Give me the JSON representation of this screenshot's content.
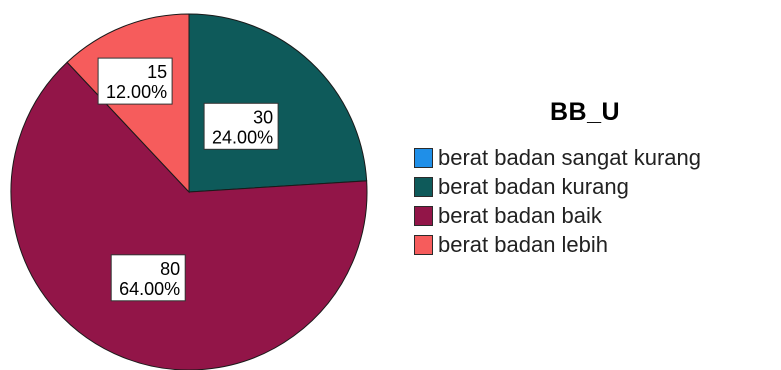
{
  "chart_data": {
    "type": "pie",
    "legend_title": "BB_U",
    "legend_position": "right",
    "slices": [
      {
        "label": "berat badan sangat kurang",
        "value": 0,
        "percent_label": "",
        "count_label": "",
        "color": "#1f8fe8"
      },
      {
        "label": "berat badan kurang",
        "value": 30,
        "percent_label": "24.00%",
        "count_label": "30",
        "color": "#0e5a5a"
      },
      {
        "label": "berat badan baik",
        "value": 80,
        "percent_label": "64.00%",
        "count_label": "80",
        "color": "#921548"
      },
      {
        "label": "berat badan lebih",
        "value": 15,
        "percent_label": "12.00%",
        "count_label": "15",
        "color": "#f65c5c"
      }
    ]
  }
}
